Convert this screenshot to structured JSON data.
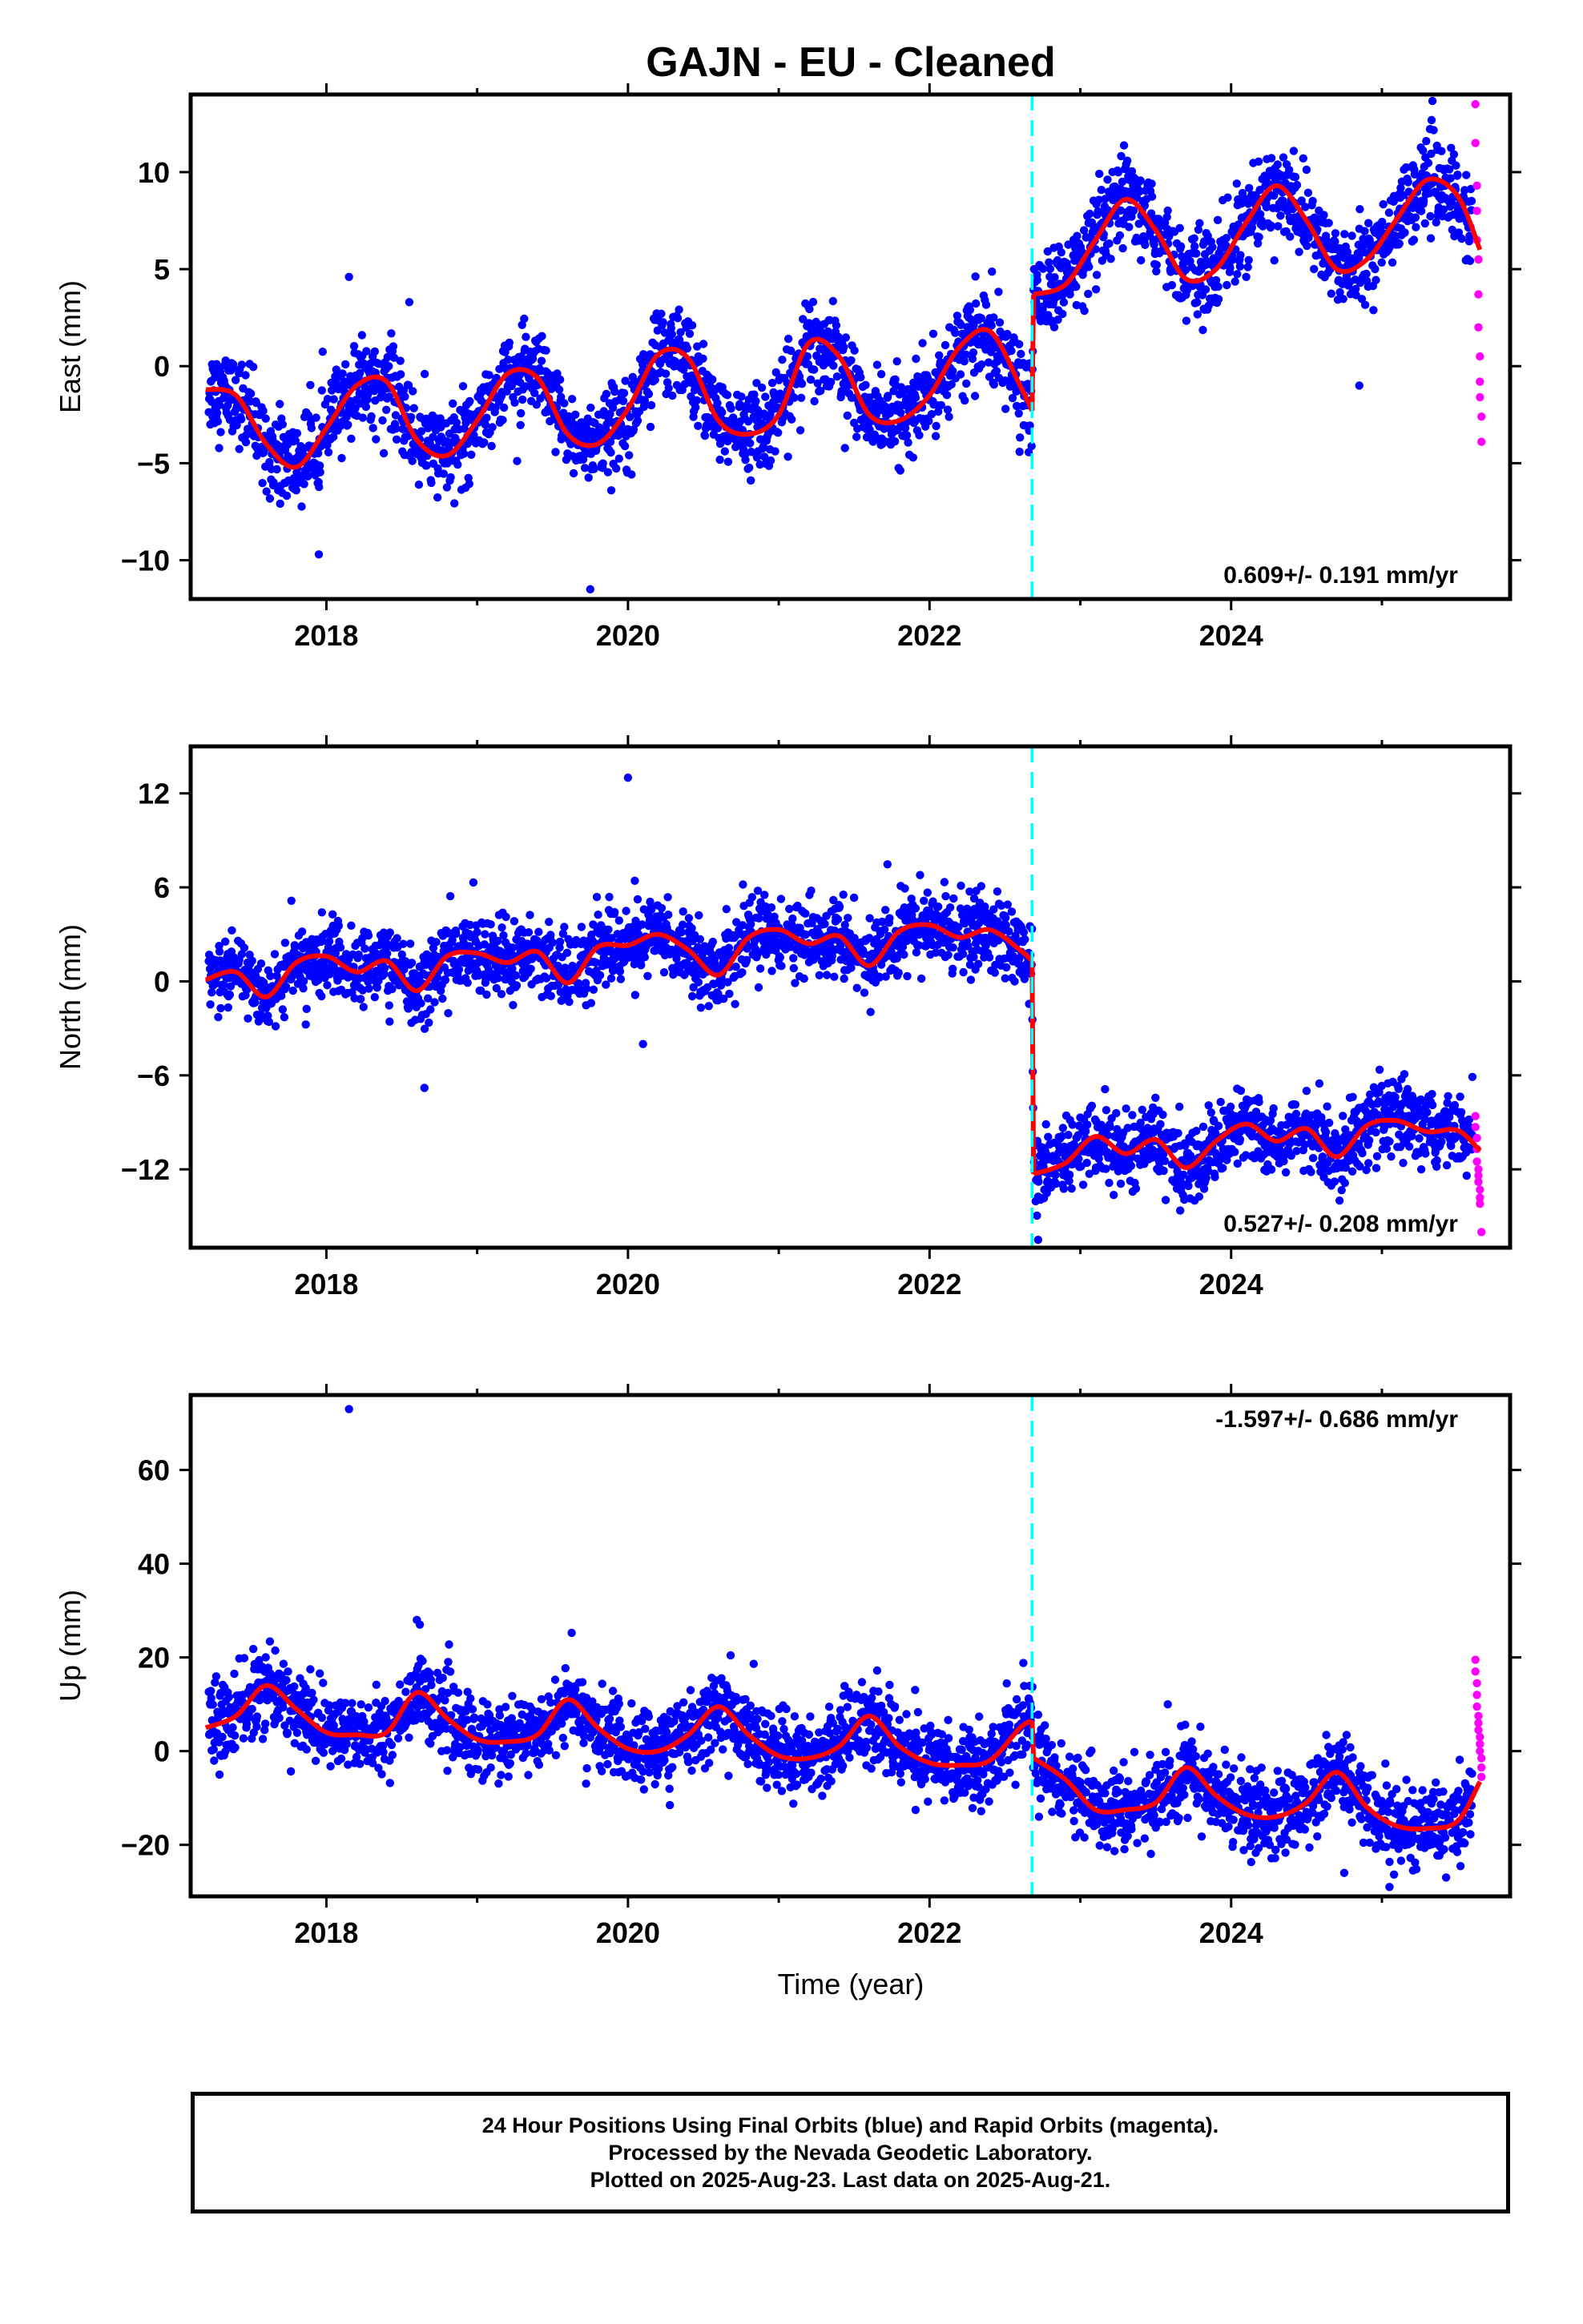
{
  "title": "GAJN  - EU - Cleaned",
  "colors": {
    "final_orbits": "#0000ff",
    "rapid_orbits": "#ff00ff",
    "model_fit": "#ff0000",
    "event_marker": "#00ffff",
    "axes": "#000000"
  },
  "xaxis": {
    "label": "Time (year)",
    "range": [
      2017.1,
      2025.85
    ],
    "tick_labels": [
      "2018",
      "2020",
      "2022",
      "2024"
    ]
  },
  "event_line_year": 2022.68,
  "footer": {
    "line1": "24 Hour Positions Using Final Orbits (blue) and Rapid Orbits (magenta).",
    "line2": "Processed by the Nevada Geodetic Laboratory.",
    "line3": "Plotted on 2025-Aug-23. Last data on 2025-Aug-21."
  },
  "chart_data": [
    {
      "type": "scatter",
      "component": "east",
      "ylabel": "East (mm)",
      "ylim": [
        -12,
        14
      ],
      "y_tick_labels": [
        "10",
        "5",
        "0",
        "−5",
        "−10"
      ],
      "rate_label": "0.609+/- 0.191 mm/yr",
      "series": [
        {
          "name": "model fit",
          "x": [
            2017.2,
            2017.4,
            2017.6,
            2017.8,
            2018.0,
            2018.2,
            2018.4,
            2018.6,
            2018.8,
            2019.0,
            2019.2,
            2019.4,
            2019.6,
            2019.8,
            2020.0,
            2020.2,
            2020.4,
            2020.6,
            2020.8,
            2021.0,
            2021.2,
            2021.4,
            2021.6,
            2021.8,
            2022.0,
            2022.2,
            2022.4,
            2022.6,
            2022.68,
            2022.69,
            2022.9,
            2023.1,
            2023.3,
            2023.5,
            2023.7,
            2023.9,
            2024.1,
            2024.3,
            2024.5,
            2024.7,
            2024.9,
            2025.1,
            2025.3,
            2025.5,
            2025.65
          ],
          "values": [
            -1.2,
            -1.5,
            -4.0,
            -5.2,
            -3.2,
            -1.0,
            -0.8,
            -3.8,
            -4.6,
            -2.8,
            -0.4,
            -0.6,
            -3.5,
            -4.0,
            -2.2,
            0.6,
            0.4,
            -2.8,
            -3.5,
            -2.5,
            1.2,
            0.5,
            -2.5,
            -2.8,
            -1.5,
            1.0,
            1.8,
            -1.0,
            -2.3,
            3.7,
            4.2,
            6.5,
            8.6,
            7.0,
            4.5,
            5.0,
            7.4,
            9.3,
            7.5,
            5.0,
            5.5,
            7.6,
            9.6,
            8.8,
            6.0
          ]
        },
        {
          "name": "final orbits",
          "season_amplitude": 2.2,
          "scatter_sd": 1.1
        },
        {
          "name": "rapid orbits",
          "x": [
            2025.62,
            2025.62,
            2025.63,
            2025.63,
            2025.63,
            2025.64,
            2025.64,
            2025.64,
            2025.65,
            2025.65,
            2025.65,
            2025.66,
            2025.66
          ],
          "values": [
            13.5,
            11.5,
            9.3,
            8.0,
            6.5,
            5.5,
            3.7,
            2.0,
            0.5,
            -0.8,
            -1.6,
            -2.6,
            -3.9
          ]
        }
      ],
      "outliers": [
        [
          2017.95,
          -9.7
        ],
        [
          2018.55,
          3.3
        ],
        [
          2019.75,
          -11.5
        ],
        [
          2024.85,
          -1.0
        ],
        [
          2018.15,
          4.6
        ]
      ]
    },
    {
      "type": "scatter",
      "component": "north",
      "ylabel": "North (mm)",
      "ylim": [
        -17,
        15
      ],
      "y_tick_labels": [
        "12",
        "6",
        "0",
        "−6",
        "−12"
      ],
      "rate_label": "0.527+/- 0.208 mm/yr",
      "series": [
        {
          "name": "model fit",
          "x": [
            2017.2,
            2017.4,
            2017.6,
            2017.8,
            2018.0,
            2018.2,
            2018.4,
            2018.6,
            2018.8,
            2019.0,
            2019.2,
            2019.4,
            2019.6,
            2019.8,
            2020.0,
            2020.2,
            2020.4,
            2020.6,
            2020.8,
            2021.0,
            2021.2,
            2021.4,
            2021.6,
            2021.8,
            2022.0,
            2022.2,
            2022.4,
            2022.6,
            2022.68,
            2022.69,
            2022.9,
            2023.1,
            2023.3,
            2023.5,
            2023.7,
            2023.9,
            2024.1,
            2024.3,
            2024.5,
            2024.7,
            2024.9,
            2025.1,
            2025.3,
            2025.5,
            2025.65
          ],
          "values": [
            0.1,
            0.6,
            -1.0,
            1.2,
            1.6,
            0.6,
            1.3,
            -0.6,
            1.6,
            1.8,
            1.2,
            1.9,
            -0.1,
            2.2,
            2.3,
            3.0,
            2.0,
            0.4,
            2.8,
            3.3,
            2.4,
            2.9,
            1.0,
            3.2,
            3.6,
            2.8,
            3.3,
            2.0,
            1.3,
            -12.3,
            -11.6,
            -9.9,
            -11.0,
            -10.1,
            -11.9,
            -10.2,
            -9.1,
            -10.2,
            -9.4,
            -11.2,
            -9.2,
            -8.9,
            -9.6,
            -9.5,
            -10.8
          ]
        },
        {
          "name": "final orbits",
          "season_amplitude": 1.2,
          "scatter_sd": 1.2
        },
        {
          "name": "rapid orbits",
          "x": [
            2025.62,
            2025.62,
            2025.63,
            2025.63,
            2025.63,
            2025.64,
            2025.64,
            2025.64,
            2025.65,
            2025.65,
            2025.65,
            2025.66
          ],
          "values": [
            -8.6,
            -9.3,
            -10.0,
            -10.7,
            -11.5,
            -12.0,
            -12.4,
            -12.8,
            -13.3,
            -13.8,
            -14.2,
            -16.0
          ]
        }
      ],
      "outliers": [
        [
          2020.0,
          13.0
        ],
        [
          2020.1,
          -4.0
        ],
        [
          2018.65,
          -6.8
        ],
        [
          2022.72,
          -16.5
        ],
        [
          2025.6,
          -6.1
        ]
      ]
    },
    {
      "type": "scatter",
      "component": "up",
      "ylabel": "Up (mm)",
      "ylim": [
        -31,
        76
      ],
      "y_tick_labels": [
        "60",
        "40",
        "20",
        "0",
        "−20"
      ],
      "rate_label": "-1.597+/- 0.686 mm/yr",
      "series": [
        {
          "name": "model fit",
          "x": [
            2017.2,
            2017.4,
            2017.6,
            2017.8,
            2018.0,
            2018.2,
            2018.4,
            2018.6,
            2018.8,
            2019.0,
            2019.2,
            2019.4,
            2019.6,
            2019.8,
            2020.0,
            2020.2,
            2020.4,
            2020.6,
            2020.8,
            2021.0,
            2021.2,
            2021.4,
            2021.6,
            2021.8,
            2022.0,
            2022.2,
            2022.4,
            2022.6,
            2022.68,
            2022.69,
            2022.9,
            2023.1,
            2023.3,
            2023.5,
            2023.7,
            2023.9,
            2024.1,
            2024.3,
            2024.5,
            2024.7,
            2024.9,
            2025.1,
            2025.3,
            2025.5,
            2025.65
          ],
          "values": [
            5.0,
            7.5,
            14.0,
            9.0,
            4.0,
            3.5,
            4.0,
            12.5,
            7.0,
            2.5,
            2.0,
            3.5,
            11.0,
            5.0,
            0.5,
            0.0,
            3.5,
            9.5,
            3.5,
            -1.0,
            -1.5,
            1.0,
            7.5,
            1.0,
            -2.5,
            -3.0,
            -2.0,
            5.0,
            6.5,
            -1.5,
            -6.0,
            -12.5,
            -12.5,
            -11.0,
            -3.5,
            -9.5,
            -13.5,
            -14.0,
            -11.0,
            -4.5,
            -12.0,
            -16.0,
            -16.5,
            -15.0,
            -6.5
          ]
        },
        {
          "name": "final orbits",
          "season_amplitude": 4.0,
          "scatter_sd": 4.2
        },
        {
          "name": "rapid orbits",
          "x": [
            2025.62,
            2025.62,
            2025.63,
            2025.63,
            2025.63,
            2025.64,
            2025.64,
            2025.64,
            2025.65,
            2025.65,
            2025.65,
            2025.66,
            2025.66,
            2025.66
          ],
          "values": [
            19.5,
            17.0,
            14.5,
            12.0,
            9.5,
            7.5,
            6.0,
            4.5,
            3.0,
            1.5,
            0.0,
            -1.5,
            -3.5,
            -5.5
          ]
        }
      ],
      "outliers": [
        [
          2018.15,
          73.0
        ],
        [
          2018.6,
          28.0
        ],
        [
          2018.62,
          27.0
        ],
        [
          2025.05,
          -29.0
        ],
        [
          2024.75,
          -26.0
        ]
      ]
    }
  ]
}
